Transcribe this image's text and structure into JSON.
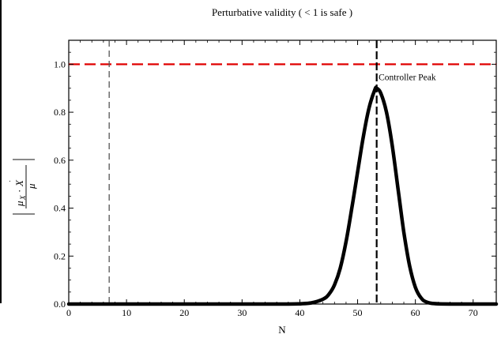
{
  "chart_data": {
    "type": "line",
    "title": "Perturbative validity ( < 1 is safe )",
    "xlabel": "N",
    "ylabel": {
      "abs_open": "|",
      "mu": "μ",
      "sub": "X",
      "dot": "·",
      "X": "X",
      "den": "μ",
      "abs_close": "|"
    },
    "xlim": [
      0,
      74
    ],
    "ylim": [
      0,
      1.1
    ],
    "x_ticks": [
      0,
      10,
      20,
      30,
      40,
      50,
      60,
      70
    ],
    "y_ticks": [
      0.0,
      0.2,
      0.4,
      0.6,
      0.8,
      1.0
    ],
    "y_tick_labels": [
      "0.0",
      "0.2",
      "0.4",
      "0.6",
      "0.8",
      "1.0"
    ],
    "grid": false,
    "series": [
      {
        "color": "#000000",
        "style": "solid",
        "x": [
          0,
          10,
          20,
          30,
          38,
          40,
          42,
          44,
          45,
          46,
          47,
          48,
          49,
          50,
          51,
          52,
          53,
          53.3,
          54,
          55,
          56,
          57,
          58,
          59,
          60,
          61,
          62,
          64,
          70,
          74
        ],
        "y": [
          0,
          0,
          0,
          0,
          0.0,
          0.001,
          0.005,
          0.02,
          0.04,
          0.08,
          0.15,
          0.26,
          0.4,
          0.55,
          0.7,
          0.82,
          0.895,
          0.9,
          0.88,
          0.8,
          0.66,
          0.48,
          0.3,
          0.16,
          0.07,
          0.025,
          0.008,
          0.001,
          0,
          0
        ]
      }
    ],
    "reference_lines": [
      {
        "orientation": "horizontal",
        "value": 1.0,
        "color": "#e00000",
        "style": "dashed"
      },
      {
        "orientation": "vertical",
        "value": 7,
        "color": "#555555",
        "style": "dashed"
      },
      {
        "orientation": "vertical",
        "value": 53.3,
        "color": "#000000",
        "style": "dashed"
      }
    ],
    "annotations": [
      {
        "text": "Controller Peak",
        "x": 53.5,
        "y": 0.9
      }
    ]
  }
}
